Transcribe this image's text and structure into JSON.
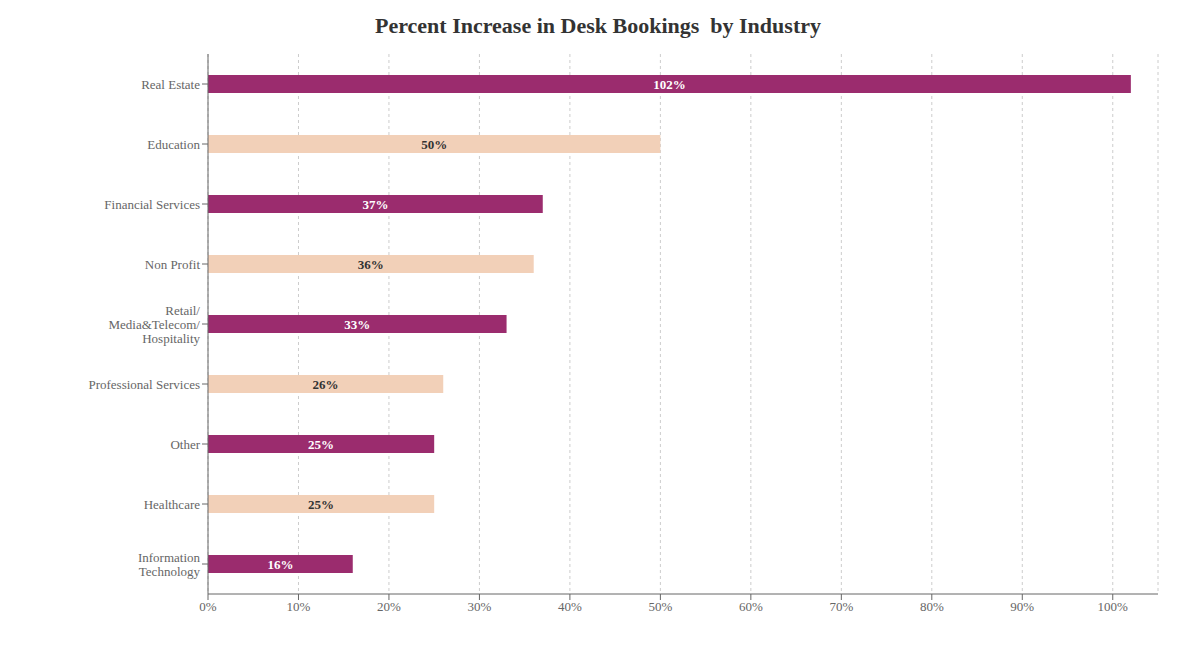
{
  "chart_data": {
    "type": "bar",
    "title": "Percent Increase in Desk Bookings  by Industry",
    "orientation": "horizontal",
    "categories": [
      "Real Estate",
      "Education",
      "Financial Services",
      "Non Profit",
      "Retail/\nMedia&Telecom/\nHospitality",
      "Professional Services",
      "Other",
      "Healthcare",
      "Information\nTechnology"
    ],
    "values": [
      102,
      50,
      37,
      36,
      33,
      26,
      25,
      25,
      16
    ],
    "value_labels": [
      "102%",
      "50%",
      "37%",
      "36%",
      "33%",
      "26%",
      "25%",
      "25%",
      "16%"
    ],
    "colors": [
      "#9B2C6E",
      "#F2D0B8",
      "#9B2C6E",
      "#F2D0B8",
      "#9B2C6E",
      "#F2D0B8",
      "#9B2C6E",
      "#F2D0B8",
      "#9B2C6E"
    ],
    "xlim": [
      0,
      105
    ],
    "xticks": [
      {
        "value": 0,
        "label": "0%"
      },
      {
        "value": 10,
        "label": "10%"
      },
      {
        "value": 20,
        "label": "20%"
      },
      {
        "value": 30,
        "label": "30%"
      },
      {
        "value": 40,
        "label": "40%"
      },
      {
        "value": 50,
        "label": "50%"
      },
      {
        "value": 60,
        "label": "60%"
      },
      {
        "value": 70,
        "label": "70%"
      },
      {
        "value": 80,
        "label": "80%"
      },
      {
        "value": 90,
        "label": "90%"
      },
      {
        "value": 100,
        "label": "100%"
      }
    ],
    "grid": true,
    "data_labels": true
  }
}
